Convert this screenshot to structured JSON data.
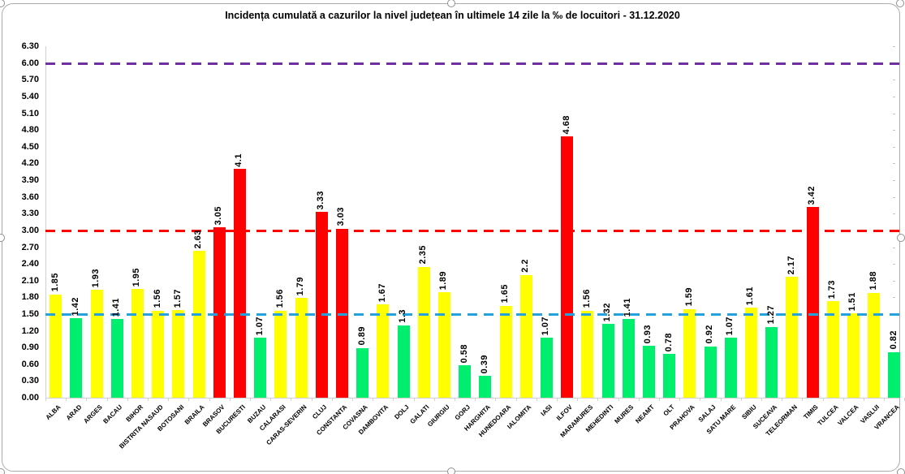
{
  "title": "Incidența cumulată a cazurilor la nivel județean în ultimele 14 zile la ‰ de locuitori - 31.12.2020",
  "chart_data": {
    "type": "bar",
    "title": "Incidența cumulată a cazurilor la nivel județean în ultimele 14 zile la ‰ de locuitori - 31.12.2020",
    "xlabel": "",
    "ylabel": "",
    "ylim": [
      0,
      6.3
    ],
    "ytick_step": 0.3,
    "ytick_labels": [
      "0.00",
      "0.30",
      "0.60",
      "0.90",
      "1.20",
      "1.50",
      "1.80",
      "2.10",
      "2.40",
      "2.70",
      "3.00",
      "3.30",
      "3.60",
      "3.90",
      "4.20",
      "4.50",
      "4.80",
      "5.10",
      "5.40",
      "5.70",
      "6.00",
      "6.30"
    ],
    "grid": false,
    "legend": "none",
    "categories": [
      "ALBA",
      "ARAD",
      "ARGES",
      "BACAU",
      "BIHOR",
      "BISTRITA NASAUD",
      "BOTOSANI",
      "BRAILA",
      "BRASOV",
      "BUCURESTI",
      "BUZAU",
      "CALARASI",
      "CARAS-SEVERIN",
      "CLUJ",
      "CONSTANTA",
      "COVASNA",
      "DAMBOVITA",
      "DOLJ",
      "GALATI",
      "GIURGIU",
      "GORJ",
      "HARGHITA",
      "HUNEDOARA",
      "IALOMITA",
      "IASI",
      "ILFOV",
      "MARAMURES",
      "MEHEDINTI",
      "MURES",
      "NEAMT",
      "OLT",
      "PRAHOVA",
      "SALAJ",
      "SATU MARE",
      "SIBIU",
      "SUCEAVA",
      "TELEORMAN",
      "TIMIS",
      "TULCEA",
      "VALCEA",
      "VASLUI",
      "VRANCEA"
    ],
    "values": [
      1.85,
      1.42,
      1.93,
      1.41,
      1.95,
      1.56,
      1.57,
      2.63,
      3.05,
      4.1,
      1.07,
      1.56,
      1.79,
      3.33,
      3.03,
      0.89,
      1.67,
      1.3,
      2.35,
      1.89,
      0.58,
      0.39,
      1.65,
      2.2,
      1.07,
      4.68,
      1.56,
      1.32,
      1.41,
      0.93,
      0.78,
      1.59,
      0.92,
      1.07,
      1.61,
      1.27,
      2.17,
      3.42,
      1.73,
      1.51,
      1.88,
      0.82
    ],
    "value_labels": [
      "1.85",
      "1.42",
      "1.93",
      "1.41",
      "1.95",
      "1.56",
      "1.57",
      "2.63",
      "3.05",
      "4.1",
      "1.07",
      "1.56",
      "1.79",
      "3.33",
      "3.03",
      "0.89",
      "1.67",
      "1.3",
      "2.35",
      "1.89",
      "0.58",
      "0.39",
      "1.65",
      "2.2",
      "1.07",
      "4.68",
      "1.56",
      "1.32",
      "1.41",
      "0.93",
      "0.78",
      "1.59",
      "0.92",
      "1.07",
      "1.61",
      "1.27",
      "2.17",
      "3.42",
      "1.73",
      "1.51",
      "1.88",
      "0.82"
    ],
    "bar_color_rules": [
      {
        "name": "green",
        "max": 1.5,
        "color": "#00EE6E"
      },
      {
        "name": "yellow",
        "max": 3.0,
        "color": "#FFFF00"
      },
      {
        "name": "red",
        "max": null,
        "color": "#FF0000"
      }
    ],
    "reference_lines": [
      {
        "value": 6.0,
        "color": "#7030A0",
        "style": "dashed"
      },
      {
        "value": 3.0,
        "color": "#FF0000",
        "style": "dashed"
      },
      {
        "value": 1.5,
        "color": "#25A2DC",
        "style": "dashed"
      }
    ]
  },
  "selection_frame": {
    "border_color": "#ababab",
    "handle_fill": "#ffffff",
    "handle_border": "#8f8f8f"
  }
}
